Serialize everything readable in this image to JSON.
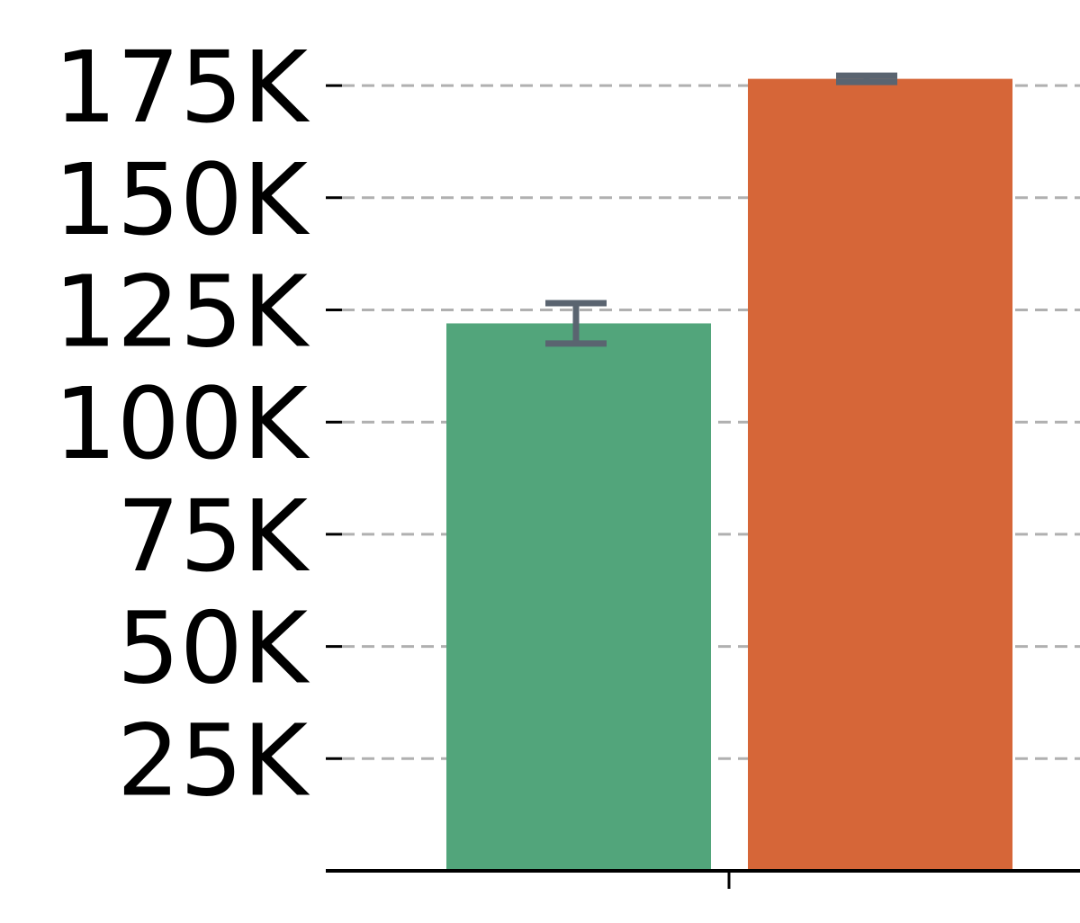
{
  "chart_data": {
    "type": "bar",
    "categories": [
      ""
    ],
    "series": [
      {
        "values": [
          122000
        ],
        "error": [
          4500
        ],
        "color": "#52a57b"
      },
      {
        "values": [
          176500
        ],
        "error": [
          700
        ],
        "color": "#d66638"
      }
    ],
    "ylim": [
      0,
      187000
    ],
    "yticks": [
      25000,
      50000,
      75000,
      100000,
      125000,
      150000,
      175000
    ],
    "ytick_labels": [
      "25K",
      "50K",
      "75K",
      "100K",
      "125K",
      "150K",
      "175K"
    ],
    "grid": true,
    "grid_color": "#b0b0b0",
    "error_bar_color": "#5a6470",
    "legend": false
  }
}
